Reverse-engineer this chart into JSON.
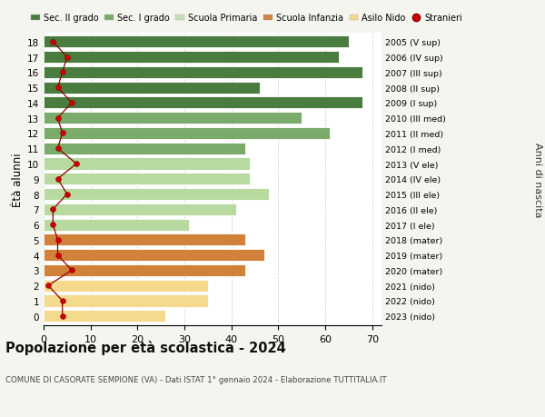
{
  "ages": [
    18,
    17,
    16,
    15,
    14,
    13,
    12,
    11,
    10,
    9,
    8,
    7,
    6,
    5,
    4,
    3,
    2,
    1,
    0
  ],
  "bar_values": [
    65,
    63,
    68,
    46,
    68,
    55,
    61,
    43,
    44,
    44,
    48,
    41,
    31,
    43,
    47,
    43,
    35,
    35,
    26
  ],
  "stranieri": [
    2,
    5,
    4,
    3,
    6,
    3,
    4,
    3,
    7,
    3,
    5,
    2,
    2,
    3,
    3,
    6,
    1,
    4,
    4
  ],
  "right_labels": [
    "2005 (V sup)",
    "2006 (IV sup)",
    "2007 (III sup)",
    "2008 (II sup)",
    "2009 (I sup)",
    "2010 (III med)",
    "2011 (II med)",
    "2012 (I med)",
    "2013 (V ele)",
    "2014 (IV ele)",
    "2015 (III ele)",
    "2016 (II ele)",
    "2017 (I ele)",
    "2018 (mater)",
    "2019 (mater)",
    "2020 (mater)",
    "2021 (nido)",
    "2022 (nido)",
    "2023 (nido)"
  ],
  "bar_colors": [
    "#4a7c3f",
    "#4a7c3f",
    "#4a7c3f",
    "#4a7c3f",
    "#4a7c3f",
    "#7aab6a",
    "#7aab6a",
    "#7aab6a",
    "#b8d9a0",
    "#b8d9a0",
    "#b8d9a0",
    "#b8d9a0",
    "#b8d9a0",
    "#d2813a",
    "#d2813a",
    "#d2813a",
    "#f5d98c",
    "#f5d98c",
    "#f5d98c"
  ],
  "legend_labels": [
    "Sec. II grado",
    "Sec. I grado",
    "Scuola Primaria",
    "Scuola Infanzia",
    "Asilo Nido",
    "Stranieri"
  ],
  "legend_colors": [
    "#4a7c3f",
    "#7aab6a",
    "#c8deb4",
    "#d2813a",
    "#f5d98c",
    "#cc0000"
  ],
  "title": "Popolazione per età scolastica - 2024",
  "subtitle": "COMUNE DI CASORATE SEMPIONE (VA) - Dati ISTAT 1° gennaio 2024 - Elaborazione TUTTITALIA.IT",
  "ylabel_left": "Ètà alunni",
  "ylabel_right": "Anni di nascita",
  "xlim": [
    0,
    72
  ],
  "xticks": [
    0,
    10,
    20,
    30,
    40,
    50,
    60,
    70
  ],
  "background_color": "#f5f5f0",
  "bar_background": "#ffffff"
}
